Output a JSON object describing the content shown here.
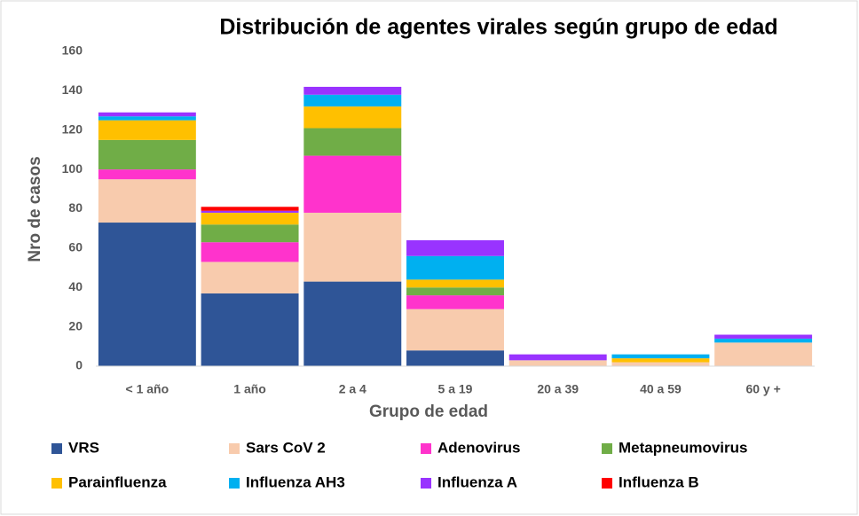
{
  "chart_data": {
    "type": "stacked_bar",
    "title": "Distribución de agentes virales según grupo de edad",
    "x_label": "Grupo de edad",
    "y_label": "Nro de casos",
    "categories": [
      "< 1 año",
      "1 año",
      "2 a 4",
      "5 a 19",
      "20 a 39",
      "40 a 59",
      "60 y +"
    ],
    "series": [
      {
        "name": "VRS",
        "color": "#2f5597",
        "values": [
          73,
          37,
          43,
          8,
          0,
          0,
          0
        ]
      },
      {
        "name": "Sars CoV 2",
        "color": "#f8cbad",
        "values": [
          22,
          16,
          35,
          21,
          3,
          2,
          12
        ]
      },
      {
        "name": "Adenovirus",
        "color": "#ff33cc",
        "values": [
          5,
          10,
          29,
          7,
          0,
          0,
          0
        ]
      },
      {
        "name": "Metapneumovirus",
        "color": "#70ad47",
        "values": [
          15,
          9,
          14,
          4,
          0,
          0,
          0
        ]
      },
      {
        "name": "Parainfluenza",
        "color": "#ffc000",
        "values": [
          10,
          6,
          11,
          4,
          0,
          2,
          0
        ]
      },
      {
        "name": "Influenza AH3",
        "color": "#00b0f0",
        "values": [
          2,
          0,
          6,
          12,
          0,
          2,
          2
        ]
      },
      {
        "name": "Influenza A",
        "color": "#9933ff",
        "values": [
          2,
          1,
          4,
          8,
          3,
          0,
          2
        ]
      },
      {
        "name": "Influenza B",
        "color": "#ff0000",
        "values": [
          0,
          2,
          0,
          0,
          0,
          0,
          0
        ]
      }
    ],
    "ylim": [
      0,
      160
    ],
    "yticks": [
      0,
      20,
      40,
      60,
      80,
      100,
      120,
      140,
      160
    ],
    "grid": false
  }
}
